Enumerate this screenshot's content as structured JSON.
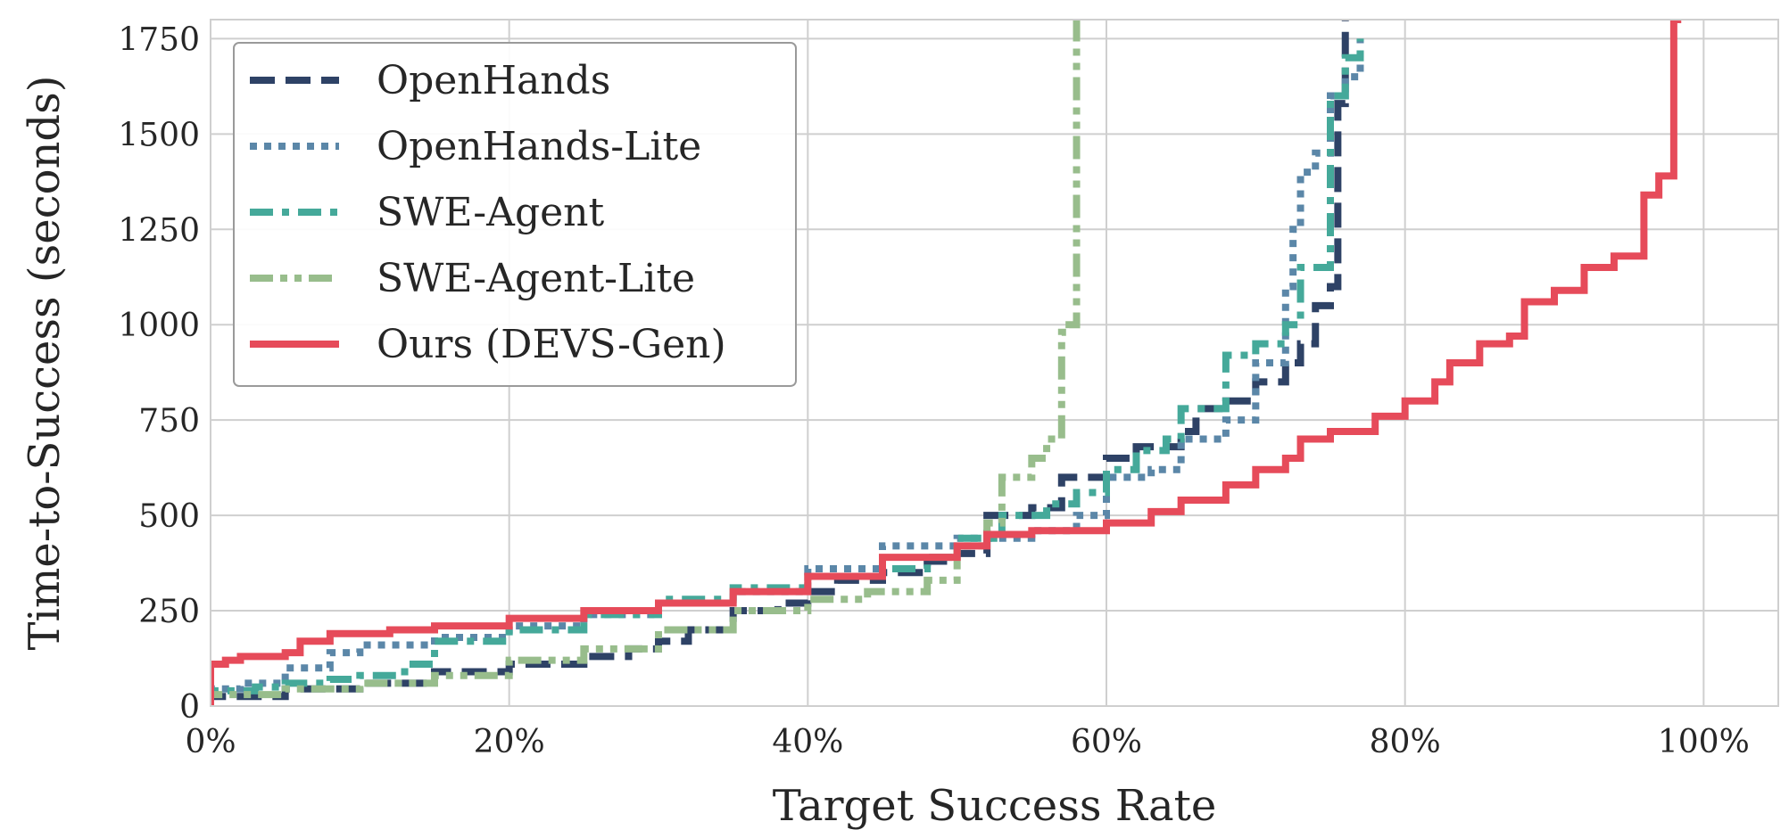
{
  "chart_data": {
    "type": "line",
    "subtype": "step",
    "title": "",
    "xlabel": "Target Success Rate",
    "ylabel": "Time-to-Success (seconds)",
    "xlim": [
      0,
      1.05
    ],
    "ylim": [
      0,
      1800
    ],
    "x_ticks": [
      {
        "value": 0,
        "label": "0%"
      },
      {
        "value": 0.2,
        "label": "20%"
      },
      {
        "value": 0.4,
        "label": "40%"
      },
      {
        "value": 0.6,
        "label": "60%"
      },
      {
        "value": 0.8,
        "label": "80%"
      },
      {
        "value": 1.0,
        "label": "100%"
      }
    ],
    "y_ticks": [
      {
        "value": 0,
        "label": "0"
      },
      {
        "value": 250,
        "label": "250"
      },
      {
        "value": 500,
        "label": "500"
      },
      {
        "value": 750,
        "label": "750"
      },
      {
        "value": 1000,
        "label": "1000"
      },
      {
        "value": 1250,
        "label": "1250"
      },
      {
        "value": 1500,
        "label": "1500"
      },
      {
        "value": 1750,
        "label": "1750"
      }
    ],
    "grid": true,
    "legend_position": "top-left",
    "series": [
      {
        "name": "OpenHands",
        "color": "#2e4266",
        "dash": "dash",
        "x": [
          0,
          0.05,
          0.1,
          0.15,
          0.2,
          0.25,
          0.28,
          0.3,
          0.32,
          0.35,
          0.38,
          0.4,
          0.42,
          0.45,
          0.48,
          0.5,
          0.52,
          0.55,
          0.57,
          0.6,
          0.62,
          0.65,
          0.66,
          0.68,
          0.7,
          0.72,
          0.73,
          0.74,
          0.75,
          0.755,
          0.76
        ],
        "y": [
          25,
          45,
          60,
          90,
          110,
          130,
          150,
          170,
          200,
          250,
          270,
          300,
          330,
          350,
          380,
          400,
          500,
          520,
          600,
          650,
          680,
          720,
          780,
          800,
          850,
          900,
          950,
          1050,
          1100,
          1580,
          1800
        ]
      },
      {
        "name": "OpenHands-Lite",
        "color": "#5b87a8",
        "dash": "dot",
        "x": [
          0,
          0.02,
          0.05,
          0.08,
          0.1,
          0.15,
          0.2,
          0.25,
          0.3,
          0.35,
          0.4,
          0.45,
          0.5,
          0.55,
          0.58,
          0.6,
          0.63,
          0.65,
          0.68,
          0.7,
          0.72,
          0.725,
          0.73,
          0.74,
          0.75,
          0.76,
          0.77
        ],
        "y": [
          45,
          60,
          100,
          140,
          160,
          180,
          210,
          240,
          270,
          300,
          360,
          420,
          440,
          460,
          500,
          600,
          620,
          700,
          750,
          900,
          1100,
          1250,
          1400,
          1450,
          1600,
          1650,
          1750
        ]
      },
      {
        "name": "SWE-Agent",
        "color": "#45a99a",
        "dash": "dashdot",
        "x": [
          0,
          0.03,
          0.05,
          0.08,
          0.1,
          0.13,
          0.15,
          0.2,
          0.25,
          0.3,
          0.35,
          0.4,
          0.45,
          0.48,
          0.5,
          0.53,
          0.56,
          0.58,
          0.6,
          0.62,
          0.64,
          0.65,
          0.68,
          0.7,
          0.72,
          0.73,
          0.75,
          0.76,
          0.77
        ],
        "y": [
          40,
          50,
          60,
          70,
          80,
          110,
          170,
          200,
          240,
          280,
          310,
          340,
          360,
          390,
          440,
          500,
          530,
          560,
          620,
          670,
          700,
          780,
          920,
          950,
          1000,
          1150,
          1600,
          1700,
          1750
        ]
      },
      {
        "name": "SWE-Agent-Lite",
        "color": "#98bd8c",
        "dash": "dashdotdot",
        "x": [
          0,
          0.05,
          0.1,
          0.15,
          0.2,
          0.25,
          0.3,
          0.35,
          0.4,
          0.44,
          0.48,
          0.5,
          0.52,
          0.53,
          0.55,
          0.56,
          0.57,
          0.575,
          0.58
        ],
        "y": [
          30,
          45,
          60,
          80,
          120,
          150,
          200,
          250,
          280,
          300,
          330,
          420,
          480,
          600,
          650,
          700,
          980,
          1000,
          1800
        ]
      },
      {
        "name": "Ours (DEVS-Gen)",
        "color": "#e64b5a",
        "dash": "solid",
        "x": [
          0,
          0.01,
          0.02,
          0.05,
          0.06,
          0.08,
          0.12,
          0.15,
          0.2,
          0.25,
          0.3,
          0.35,
          0.4,
          0.45,
          0.5,
          0.52,
          0.55,
          0.6,
          0.63,
          0.65,
          0.68,
          0.7,
          0.72,
          0.73,
          0.75,
          0.78,
          0.8,
          0.82,
          0.83,
          0.85,
          0.87,
          0.88,
          0.9,
          0.92,
          0.94,
          0.96,
          0.97,
          0.98,
          0.985
        ],
        "y": [
          110,
          120,
          130,
          140,
          170,
          190,
          200,
          210,
          230,
          250,
          270,
          300,
          340,
          390,
          420,
          450,
          460,
          480,
          510,
          540,
          580,
          620,
          650,
          700,
          720,
          760,
          800,
          850,
          900,
          950,
          970,
          1060,
          1090,
          1150,
          1180,
          1340,
          1390,
          1800,
          1800
        ]
      }
    ]
  }
}
